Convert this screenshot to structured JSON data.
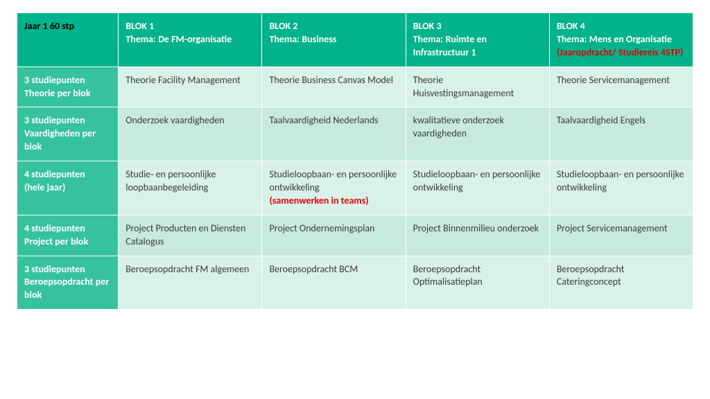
{
  "table": {
    "colors": {
      "header_bg": "#00b38a",
      "rowhdr_bg": "#35c29d",
      "cell_light_bg": "#d8f1e9",
      "cell_dark_bg": "#c8eade",
      "text_dark": "#3b3b3b",
      "red": "#e60000"
    },
    "header": {
      "corner": "Jaar 1 60 stp",
      "cols": [
        {
          "title": "BLOK 1",
          "sub": "Thema: De FM-organisatie",
          "note": ""
        },
        {
          "title": "BLOK 2",
          "sub": "Thema: Business",
          "note": ""
        },
        {
          "title": "BLOK 3",
          "sub": "Thema: Ruimte en Infrastructuur  1",
          "note": ""
        },
        {
          "title": "BLOK 4",
          "sub": "Thema: Mens en Organisatie",
          "note": "(Jaaropdracht/  Studiereis 4STP)"
        }
      ]
    },
    "rows": [
      {
        "label_l1": "3 studiepunten",
        "label_l2": "Theorie per blok",
        "shade": "light",
        "cells": [
          {
            "text": "Theorie Facility Management"
          },
          {
            "text": "Theorie Business Canvas Model"
          },
          {
            "text": "Theorie Huisvestingsmanagement"
          },
          {
            "text": "Theorie Servicemanagement"
          }
        ]
      },
      {
        "label_l1": "3 studiepunten",
        "label_l2": "Vaardigheden per blok",
        "shade": "dark",
        "cells": [
          {
            "text": "Onderzoek vaardigheden"
          },
          {
            "text": "Taalvaardigheid Nederlands"
          },
          {
            "text": "kwalitatieve  onderzoek vaardigheden"
          },
          {
            "text": "Taalvaardigheid Engels"
          }
        ]
      },
      {
        "label_l1": "4 studiepunten",
        "label_l2": "(hele jaar)",
        "shade": "light",
        "cells": [
          {
            "text": "Studie- en persoonlijke loopbaanbegeleiding"
          },
          {
            "text": "Studieloopbaan- en persoonlijke ontwikkeling",
            "note": "(samenwerken in teams)"
          },
          {
            "text": "Studieloopbaan- en persoonlijke ontwikkeling"
          },
          {
            "text": "Studieloopbaan- en persoonlijke ontwikkeling"
          }
        ]
      },
      {
        "label_l1": "4 studiepunten",
        "label_l2": "Project per blok",
        "shade": "dark",
        "cells": [
          {
            "text": "Project Producten en Diensten Catalogus"
          },
          {
            "text": "Project Ondernemingsplan"
          },
          {
            "text": "Project Binnenmilieu onderzoek"
          },
          {
            "text": "Project Servicemanagement"
          }
        ]
      },
      {
        "label_l1": "3 studiepunten",
        "label_l2": "Beroepsopdracht per blok",
        "shade": "light",
        "cells": [
          {
            "text": "Beroepsopdracht FM algemeen"
          },
          {
            "text": "Beroepsopdracht BCM"
          },
          {
            "text": "Beroepsopdracht Optimalisatieplan"
          },
          {
            "text": "Beroepsopdracht Cateringconcept"
          }
        ]
      }
    ]
  }
}
